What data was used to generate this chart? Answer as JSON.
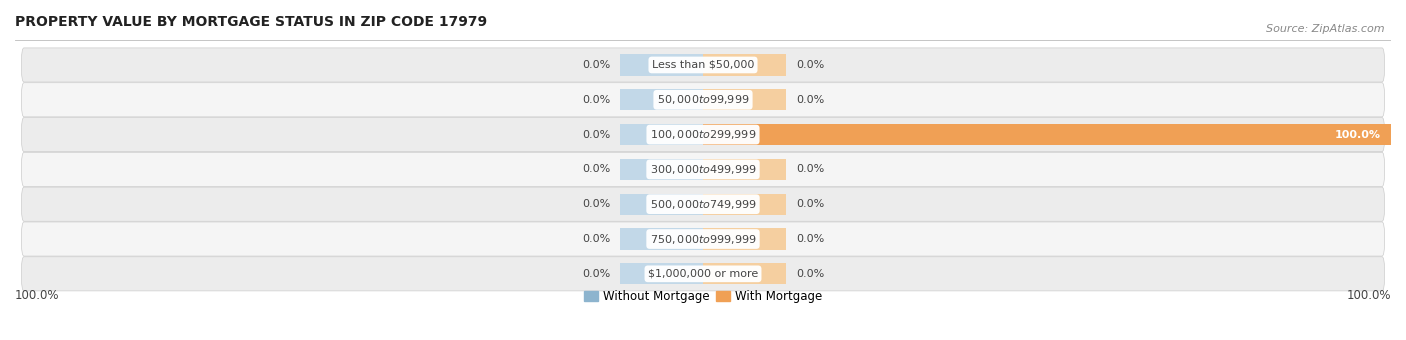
{
  "title": "PROPERTY VALUE BY MORTGAGE STATUS IN ZIP CODE 17979",
  "source": "Source: ZipAtlas.com",
  "categories": [
    "Less than $50,000",
    "$50,000 to $99,999",
    "$100,000 to $299,999",
    "$300,000 to $499,999",
    "$500,000 to $749,999",
    "$750,000 to $999,999",
    "$1,000,000 or more"
  ],
  "without_mortgage": [
    0.0,
    0.0,
    0.0,
    0.0,
    0.0,
    0.0,
    0.0
  ],
  "with_mortgage": [
    0.0,
    0.0,
    100.0,
    0.0,
    0.0,
    0.0,
    0.0
  ],
  "color_without": "#8db4ce",
  "color_with": "#f0a055",
  "color_without_light": "#c2d8e8",
  "color_with_light": "#f5cfa0",
  "row_bg_color": "#ececec",
  "row_bg_light": "#f5f5f5",
  "text_color": "#444444",
  "label_bottom_left": "100.0%",
  "label_bottom_right": "100.0%",
  "title_fontsize": 10,
  "source_fontsize": 8,
  "legend_fontsize": 8.5,
  "tick_fontsize": 8.5,
  "bar_label_fontsize": 8,
  "category_fontsize": 8,
  "xlim_left": -100,
  "xlim_right": 100,
  "indicator_bar_width": 12,
  "max_val": 100.0
}
